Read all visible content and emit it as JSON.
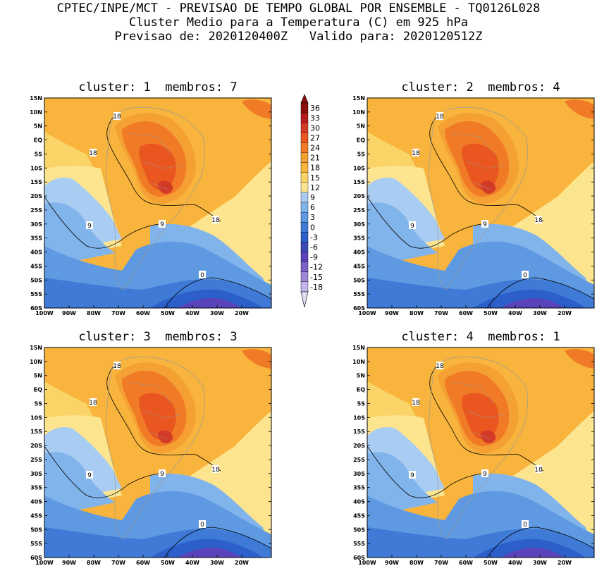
{
  "header": {
    "line1": "CPTEC/INPE/MCT - PREVISAO DE TEMPO GLOBAL POR ENSEMBLE - TQ0126L028",
    "line2": "Cluster Medio para a Temperatura (C) em 925 hPa",
    "line3": "Previsao de: 2020120400Z   Valido para: 2020120512Z"
  },
  "panels": [
    {
      "title": "cluster: 1  membros: 7"
    },
    {
      "title": "cluster: 2  membros: 4"
    },
    {
      "title": "cluster: 3  membros: 3"
    },
    {
      "title": "cluster: 4  membros: 1"
    }
  ],
  "axes": {
    "lat_labels": [
      "15N",
      "10N",
      "5N",
      "EQ",
      "5S",
      "10S",
      "15S",
      "20S",
      "25S",
      "30S",
      "35S",
      "40S",
      "45S",
      "50S",
      "55S",
      "60S"
    ],
    "lon_labels": [
      "100W",
      "90W",
      "80W",
      "70W",
      "60W",
      "50W",
      "40W",
      "30W",
      "20W"
    ]
  },
  "contour_labels": {
    "c18": "18",
    "c9": "9",
    "c0": "0"
  },
  "colorbar": {
    "labels": [
      "36",
      "33",
      "30",
      "27",
      "24",
      "21",
      "18",
      "15",
      "12",
      "9",
      "6",
      "3",
      "0",
      "-3",
      "-6",
      "-9",
      "-12",
      "-15",
      "-18"
    ],
    "colors": [
      "#8b0e0e",
      "#b51b1b",
      "#d33a27",
      "#e9561f",
      "#f07a26",
      "#f5a033",
      "#f8b43c",
      "#fbd468",
      "#fde590",
      "#a9ccf2",
      "#82b4ec",
      "#5e99e2",
      "#3f7ad7",
      "#2c5fc9",
      "#3a48b8",
      "#5a42b8",
      "#7a60c8",
      "#9c86d8",
      "#c2b4e8",
      "#e3dcf5"
    ]
  },
  "fields": {
    "tropical": "#f8b43c",
    "hot1": "#f5a033",
    "hot2": "#f07a26",
    "hot3": "#e9561f",
    "hot4": "#d33a27",
    "mild": "#fde590",
    "warmyellow": "#fbd468",
    "cool1": "#a9ccf2",
    "cool2": "#82b4ec",
    "cold1": "#5e99e2",
    "cold2": "#3f7ad7",
    "cold3": "#2c5fc9",
    "polar": "#5a42b8",
    "land_outline": "#9a9a9a"
  }
}
